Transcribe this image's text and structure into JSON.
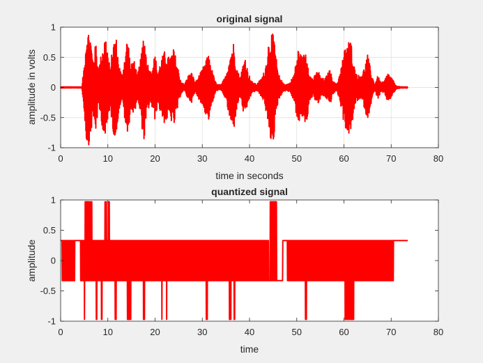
{
  "chart_data": [
    {
      "type": "line",
      "title": "original signal",
      "xlabel": "time in seconds",
      "ylabel": "amplitude in volts",
      "xlim": [
        0,
        80
      ],
      "ylim": [
        -1,
        1
      ],
      "xticks": [
        0,
        10,
        20,
        30,
        40,
        50,
        60,
        70,
        80
      ],
      "yticks": [
        -1,
        -0.5,
        0,
        0.5,
        1
      ],
      "xtick_labels": [
        "0",
        "10",
        "20",
        "30",
        "40",
        "50",
        "60",
        "70",
        "80"
      ],
      "ytick_labels": [
        "-1",
        "-0.5",
        "0",
        "0.5",
        "1"
      ],
      "grid": true,
      "series_color": "#ff0000",
      "signal_range": [
        0,
        73.5
      ],
      "envelope": [
        {
          "t": 0,
          "a": 0.01
        },
        {
          "t": 4.5,
          "a": 0.01
        },
        {
          "t": 5,
          "a": 0.4
        },
        {
          "t": 5.5,
          "a": 0.95
        },
        {
          "t": 6.2,
          "a": 0.95
        },
        {
          "t": 6.8,
          "a": 0.5
        },
        {
          "t": 7.5,
          "a": 0.75
        },
        {
          "t": 8,
          "a": 0.3
        },
        {
          "t": 8.8,
          "a": 0.65
        },
        {
          "t": 9.5,
          "a": 0.9
        },
        {
          "t": 10,
          "a": 0.6
        },
        {
          "t": 10.5,
          "a": 0.3
        },
        {
          "t": 11,
          "a": 0.7
        },
        {
          "t": 11.7,
          "a": 0.9
        },
        {
          "t": 12.3,
          "a": 0.4
        },
        {
          "t": 13,
          "a": 0.2
        },
        {
          "t": 13.6,
          "a": 0.55
        },
        {
          "t": 14.2,
          "a": 0.9
        },
        {
          "t": 14.8,
          "a": 0.35
        },
        {
          "t": 15.5,
          "a": 0.5
        },
        {
          "t": 16.2,
          "a": 0.2
        },
        {
          "t": 17,
          "a": 0.5
        },
        {
          "t": 17.6,
          "a": 0.95
        },
        {
          "t": 18.3,
          "a": 0.45
        },
        {
          "t": 19,
          "a": 0.25
        },
        {
          "t": 20,
          "a": 0.55
        },
        {
          "t": 20.6,
          "a": 0.25
        },
        {
          "t": 21.2,
          "a": 0.45
        },
        {
          "t": 22,
          "a": 0.6
        },
        {
          "t": 23,
          "a": 0.5
        },
        {
          "t": 24,
          "a": 0.65
        },
        {
          "t": 24.8,
          "a": 0.35
        },
        {
          "t": 25.5,
          "a": 0.1
        },
        {
          "t": 26.2,
          "a": 0.05
        },
        {
          "t": 27,
          "a": 0.2
        },
        {
          "t": 27.8,
          "a": 0.25
        },
        {
          "t": 28.5,
          "a": 0.08
        },
        {
          "t": 29.3,
          "a": 0.2
        },
        {
          "t": 30,
          "a": 0.3
        },
        {
          "t": 30.7,
          "a": 0.45
        },
        {
          "t": 31.4,
          "a": 0.55
        },
        {
          "t": 32.2,
          "a": 0.25
        },
        {
          "t": 33,
          "a": 0.05
        },
        {
          "t": 34,
          "a": 0.05
        },
        {
          "t": 35,
          "a": 0.2
        },
        {
          "t": 35.8,
          "a": 0.55
        },
        {
          "t": 36.6,
          "a": 0.75
        },
        {
          "t": 37.3,
          "a": 0.35
        },
        {
          "t": 38,
          "a": 0.15
        },
        {
          "t": 39,
          "a": 0.55
        },
        {
          "t": 39.7,
          "a": 0.25
        },
        {
          "t": 40.5,
          "a": 0.1
        },
        {
          "t": 41.5,
          "a": 0.05
        },
        {
          "t": 42.5,
          "a": 0.15
        },
        {
          "t": 43.3,
          "a": 0.3
        },
        {
          "t": 44,
          "a": 0.75
        },
        {
          "t": 44.6,
          "a": 0.92
        },
        {
          "t": 45.2,
          "a": 0.85
        },
        {
          "t": 46,
          "a": 0.25
        },
        {
          "t": 47,
          "a": 0.08
        },
        {
          "t": 47.8,
          "a": 0.05
        },
        {
          "t": 48.6,
          "a": 0.08
        },
        {
          "t": 49.5,
          "a": 0.25
        },
        {
          "t": 50.3,
          "a": 0.65
        },
        {
          "t": 51.2,
          "a": 0.5
        },
        {
          "t": 52,
          "a": 0.65
        },
        {
          "t": 52.8,
          "a": 0.2
        },
        {
          "t": 53.5,
          "a": 0.15
        },
        {
          "t": 54.5,
          "a": 0.3
        },
        {
          "t": 55.2,
          "a": 0.15
        },
        {
          "t": 56,
          "a": 0.15
        },
        {
          "t": 57,
          "a": 0.3
        },
        {
          "t": 57.8,
          "a": 0.1
        },
        {
          "t": 58.5,
          "a": 0.05
        },
        {
          "t": 59.3,
          "a": 0.3
        },
        {
          "t": 60,
          "a": 0.6
        },
        {
          "t": 60.8,
          "a": 0.8
        },
        {
          "t": 61.6,
          "a": 0.75
        },
        {
          "t": 62.3,
          "a": 0.3
        },
        {
          "t": 63,
          "a": 0.2
        },
        {
          "t": 64,
          "a": 0.25
        },
        {
          "t": 65,
          "a": 0.55
        },
        {
          "t": 65.8,
          "a": 0.25
        },
        {
          "t": 66.5,
          "a": 0.05
        },
        {
          "t": 67.2,
          "a": 0.2
        },
        {
          "t": 67.8,
          "a": 0.08
        },
        {
          "t": 68.5,
          "a": 0.1
        },
        {
          "t": 69.3,
          "a": 0.25
        },
        {
          "t": 70.2,
          "a": 0.15
        },
        {
          "t": 71,
          "a": 0.03
        },
        {
          "t": 72,
          "a": 0.01
        },
        {
          "t": 73.5,
          "a": 0.01
        }
      ]
    },
    {
      "type": "line",
      "title": "quantized signal",
      "xlabel": "time",
      "ylabel": "amplitude",
      "xlim": [
        0,
        80
      ],
      "ylim": [
        -1,
        1
      ],
      "xticks": [
        0,
        10,
        20,
        30,
        40,
        50,
        60,
        70,
        80
      ],
      "yticks": [
        -1,
        -0.5,
        0,
        0.5,
        1
      ],
      "xtick_labels": [
        "0",
        "10",
        "20",
        "30",
        "40",
        "50",
        "60",
        "70",
        "80"
      ],
      "ytick_labels": [
        "-1",
        "-0.5",
        "0",
        "0.5",
        "1"
      ],
      "grid": false,
      "series_color": "#ff0000",
      "levels": [
        -0.97,
        -0.33,
        0.33,
        0.97
      ],
      "signal_range": [
        0,
        73.5
      ],
      "segments": [
        {
          "start": 0,
          "end": 0.3,
          "level": 0.33
        },
        {
          "start": 0.3,
          "end": 3,
          "swing": [
            -0.33,
            0.33
          ]
        },
        {
          "start": 3,
          "end": 4.2,
          "level": 0.33
        },
        {
          "start": 4.2,
          "end": 44,
          "swing": [
            -0.33,
            0.33
          ]
        },
        {
          "start": 44,
          "end": 47,
          "level": -0.33
        },
        {
          "start": 47,
          "end": 48,
          "level": 0.33
        },
        {
          "start": 48,
          "end": 70.5,
          "swing": [
            -0.33,
            0.33
          ]
        },
        {
          "start": 70.5,
          "end": 73.5,
          "level": 0.33
        }
      ],
      "spikes": [
        {
          "start": 5.1,
          "end": 6.6,
          "level": 0.97
        },
        {
          "start": 9.3,
          "end": 9.8,
          "level": 0.97
        },
        {
          "start": 10.1,
          "end": 10.4,
          "level": 0.97
        },
        {
          "start": 44.3,
          "end": 45.7,
          "level": 0.97
        },
        {
          "start": 5,
          "end": 5.5,
          "level": -0.97
        },
        {
          "start": 6.2,
          "end": 6.4,
          "level": -0.97
        },
        {
          "start": 7.5,
          "end": 7.7,
          "level": -0.97
        },
        {
          "start": 8.6,
          "end": 8.8,
          "level": -0.97
        },
        {
          "start": 9.5,
          "end": 9.7,
          "level": -0.97
        },
        {
          "start": 11.5,
          "end": 11.8,
          "level": -0.97
        },
        {
          "start": 14.1,
          "end": 14.9,
          "level": -0.97
        },
        {
          "start": 17.5,
          "end": 17.8,
          "level": -0.97
        },
        {
          "start": 21.4,
          "end": 21.5,
          "level": -0.97
        },
        {
          "start": 22.4,
          "end": 22.5,
          "level": -0.97
        },
        {
          "start": 30.8,
          "end": 31.1,
          "level": -0.97
        },
        {
          "start": 35.7,
          "end": 36.1,
          "level": -0.97
        },
        {
          "start": 36.7,
          "end": 36.9,
          "level": -0.97
        },
        {
          "start": 45,
          "end": 45.2,
          "level": -0.97
        },
        {
          "start": 51.8,
          "end": 52.1,
          "level": -0.97
        },
        {
          "start": 60.2,
          "end": 62.1,
          "level": -0.97
        }
      ]
    }
  ]
}
